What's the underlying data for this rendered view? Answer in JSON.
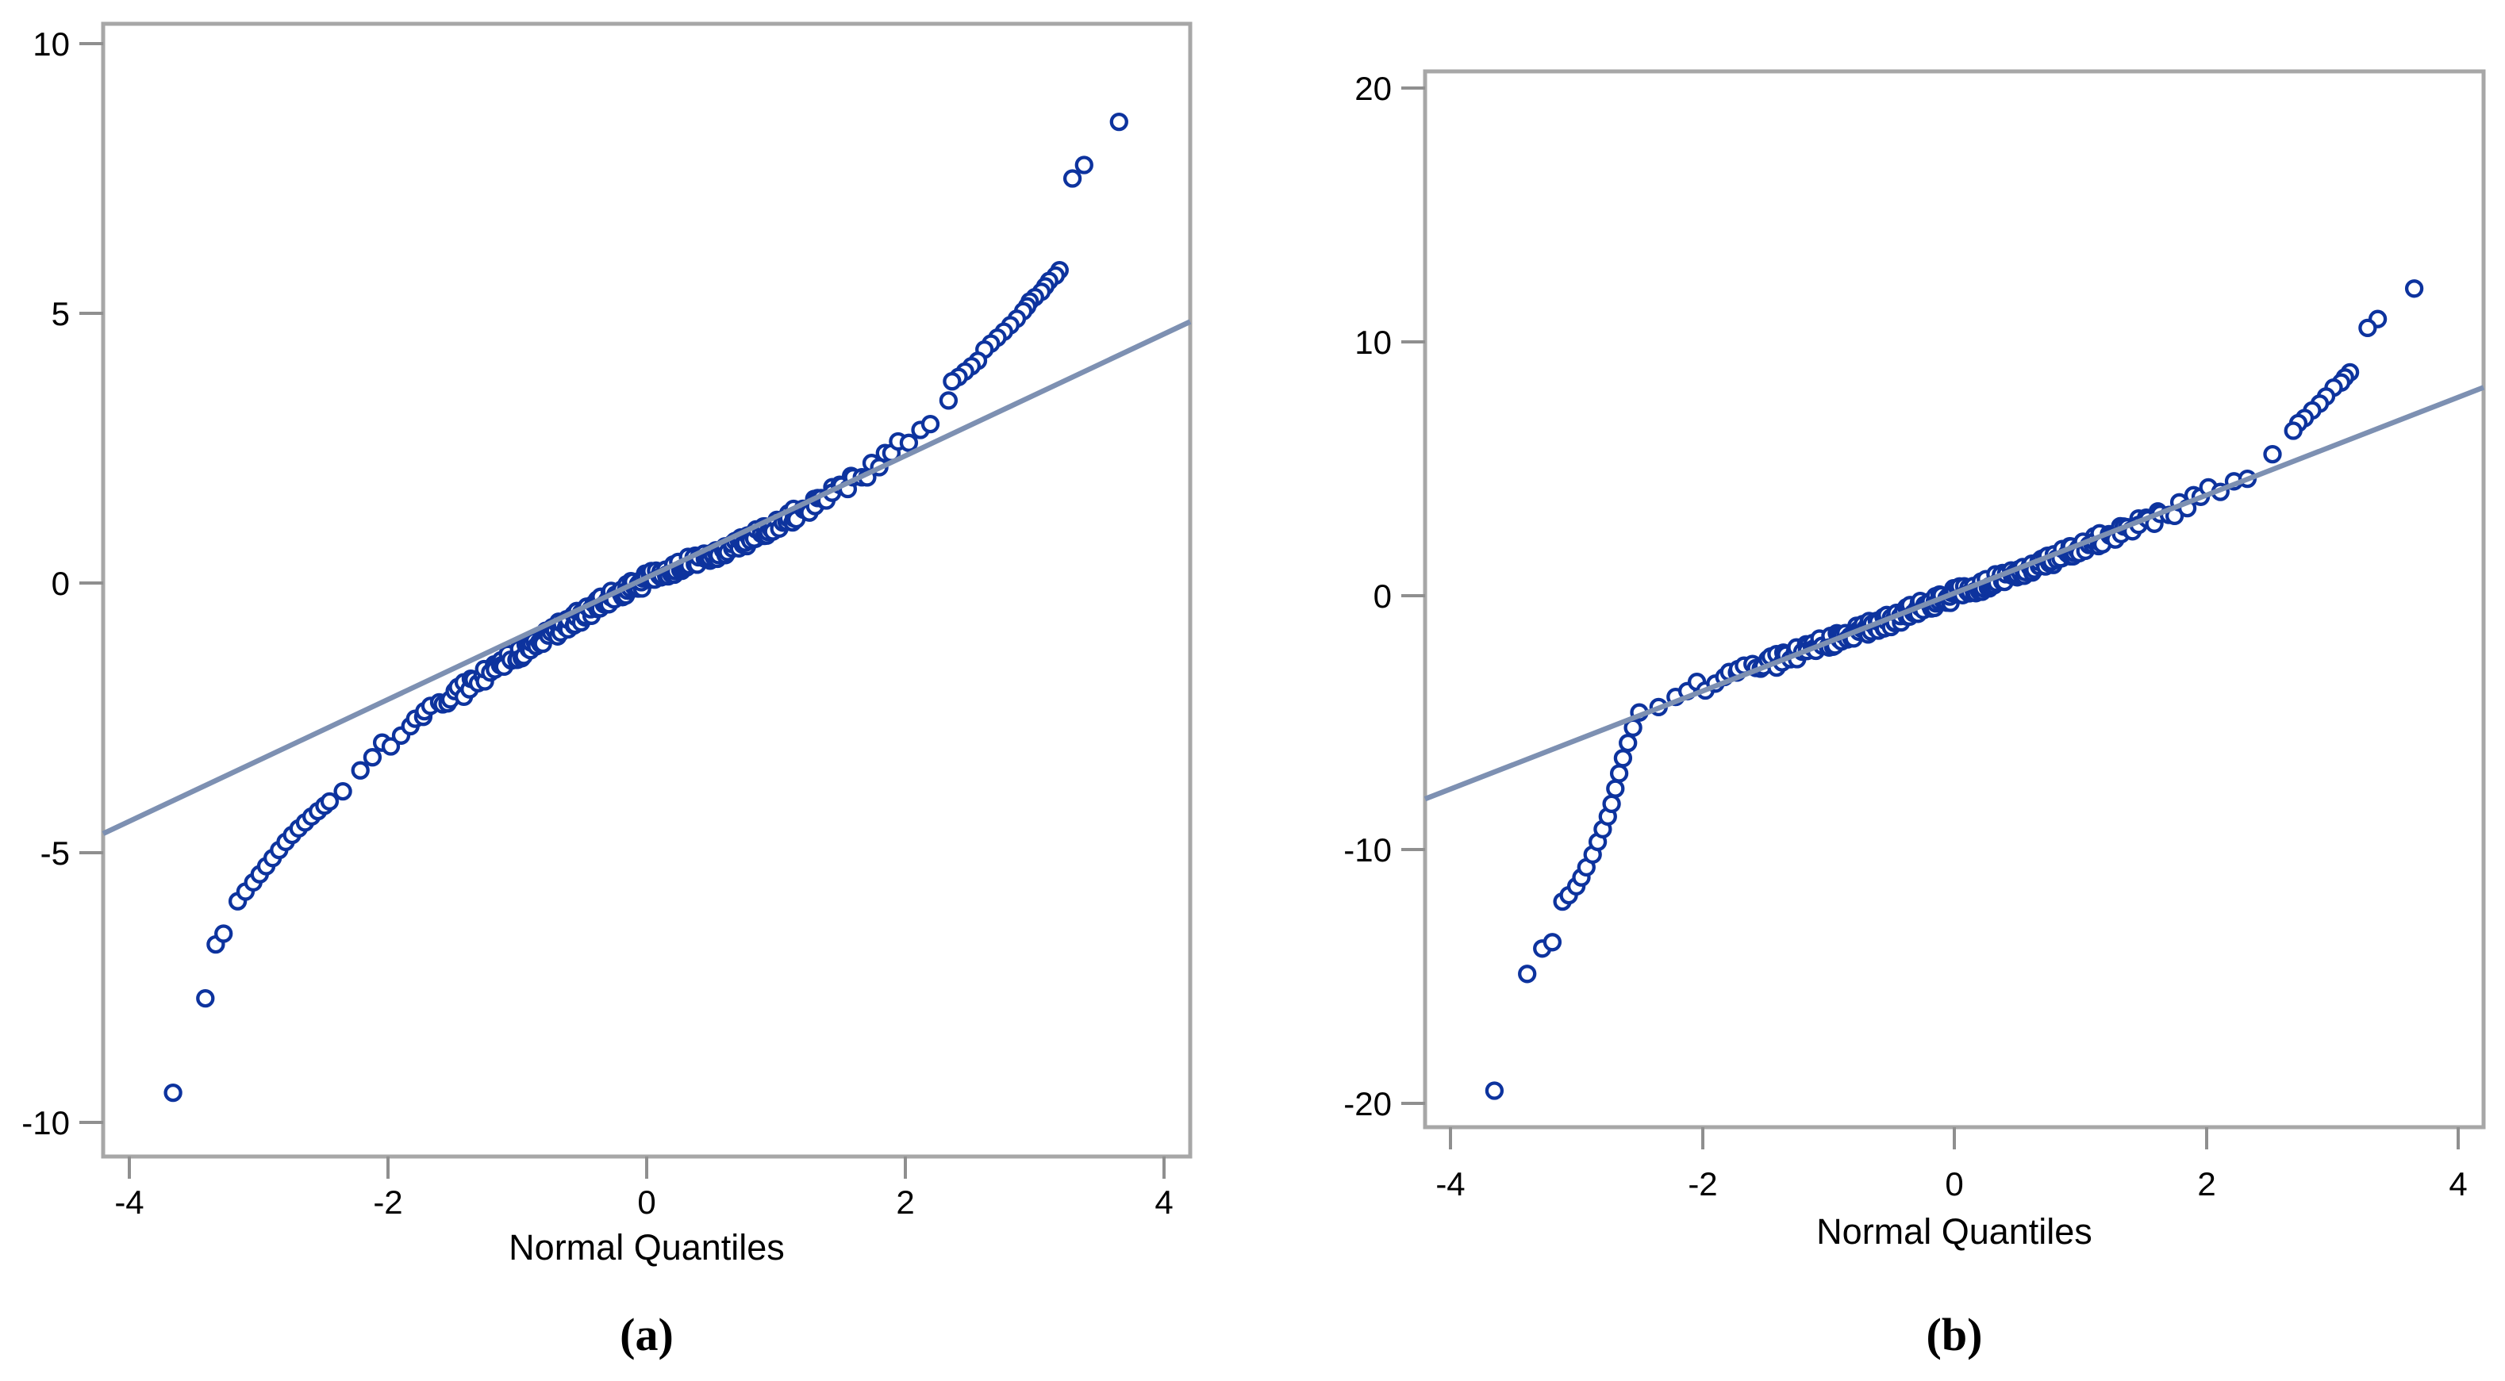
{
  "figure": {
    "description": "Two side-by-side normal quantile (Q-Q) plots of residuals with heavy tails, SAS-style, each with a blue-gray normal reference line and open navy circle markers forming an S-shaped curve."
  },
  "style": {
    "marker_color": "#0d339e",
    "marker_fill": "#ffffff",
    "ref_line_color": "#7d90b2",
    "frame_color": "#a7a7a7",
    "tick_color": "#8f8f8f",
    "text_color": "#000000",
    "background": "#ffffff"
  },
  "chart_data": [
    {
      "type": "scatter",
      "panel": "a",
      "caption": "(a)",
      "title": "",
      "xlabel": "Normal Quantiles",
      "ylabel": "",
      "grid": false,
      "legend": null,
      "marker": "open-circle",
      "xlim": [
        -4.2,
        4.2
      ],
      "ylim": [
        -10.6,
        10.4
      ],
      "x_ticks": [
        -4,
        -2,
        0,
        2,
        4
      ],
      "y_ticks": [
        10,
        5,
        0,
        -5,
        -10
      ],
      "x_tick_labels": [
        "-4",
        "-2",
        "0",
        "2",
        "4"
      ],
      "y_tick_labels": [
        "10",
        "5",
        "0",
        "-5",
        "-10"
      ],
      "ref_line": {
        "slope": 1.13,
        "intercept": 0.1,
        "x_span": [
          -4.2,
          4.2
        ]
      },
      "tail_points": [
        [
          3.65,
          8.55
        ],
        [
          3.38,
          7.75
        ],
        [
          3.29,
          7.5
        ],
        [
          3.19,
          5.8
        ],
        [
          3.16,
          5.7
        ],
        [
          3.11,
          5.6
        ],
        [
          3.08,
          5.5
        ],
        [
          3.05,
          5.4
        ],
        [
          3.0,
          5.3
        ],
        [
          2.96,
          5.22
        ],
        [
          2.94,
          5.13
        ],
        [
          2.91,
          5.04
        ],
        [
          2.86,
          4.9
        ],
        [
          2.81,
          4.78
        ],
        [
          2.76,
          4.66
        ],
        [
          2.71,
          4.55
        ],
        [
          2.66,
          4.44
        ],
        [
          2.61,
          4.33
        ],
        [
          2.56,
          4.12
        ],
        [
          2.51,
          4.02
        ],
        [
          2.46,
          3.92
        ],
        [
          2.41,
          3.82
        ],
        [
          2.36,
          3.74
        ],
        [
          -3.66,
          -9.45
        ],
        [
          -3.41,
          -7.7
        ],
        [
          -3.33,
          -6.7
        ],
        [
          -3.27,
          -6.5
        ],
        [
          -3.16,
          -5.9
        ],
        [
          -3.1,
          -5.72
        ],
        [
          -3.04,
          -5.55
        ],
        [
          -2.99,
          -5.4
        ],
        [
          -2.94,
          -5.25
        ],
        [
          -2.89,
          -5.1
        ],
        [
          -2.84,
          -4.95
        ],
        [
          -2.79,
          -4.8
        ],
        [
          -2.74,
          -4.67
        ],
        [
          -2.69,
          -4.55
        ],
        [
          -2.64,
          -4.44
        ],
        [
          -2.59,
          -4.33
        ],
        [
          -2.54,
          -4.23
        ],
        [
          -2.49,
          -4.13
        ],
        [
          -2.45,
          -4.05
        ]
      ],
      "band": {
        "description": "dense run of overlapping open-circle markers forming the central S-curve",
        "n": 250,
        "u_range": [
          0.0072,
          0.9918
        ],
        "jitter_y": 0.12,
        "jitter_x": 0.02,
        "anchors": [
          [
            -2.45,
            -4.0
          ],
          [
            -2.3,
            -3.65
          ],
          [
            -2.1,
            -3.2
          ],
          [
            -1.9,
            -2.8
          ],
          [
            -1.7,
            -2.45
          ],
          [
            -1.5,
            -2.1
          ],
          [
            -1.3,
            -1.78
          ],
          [
            -1.1,
            -1.48
          ],
          [
            -0.9,
            -1.18
          ],
          [
            -0.7,
            -0.88
          ],
          [
            -0.5,
            -0.58
          ],
          [
            -0.3,
            -0.32
          ],
          [
            -0.1,
            -0.05
          ],
          [
            0.1,
            0.16
          ],
          [
            0.3,
            0.36
          ],
          [
            0.5,
            0.5
          ],
          [
            0.7,
            0.72
          ],
          [
            0.9,
            0.95
          ],
          [
            1.1,
            1.2
          ],
          [
            1.3,
            1.48
          ],
          [
            1.5,
            1.78
          ],
          [
            1.7,
            2.08
          ],
          [
            1.9,
            2.42
          ],
          [
            2.1,
            2.82
          ],
          [
            2.3,
            3.28
          ],
          [
            2.4,
            3.55
          ]
        ]
      }
    },
    {
      "type": "scatter",
      "panel": "b",
      "caption": "(b)",
      "title": "",
      "xlabel": "Normal Quantiles",
      "ylabel": "",
      "grid": false,
      "legend": null,
      "marker": "open-circle",
      "xlim": [
        -4.2,
        4.2
      ],
      "ylim": [
        -20.9,
        20.7
      ],
      "x_ticks": [
        -4,
        -2,
        0,
        2,
        4
      ],
      "y_ticks": [
        20,
        10,
        0,
        -10,
        -20
      ],
      "x_tick_labels": [
        "-4",
        "-2",
        "0",
        "2",
        "4"
      ],
      "y_tick_labels": [
        "20",
        "10",
        "0",
        "-10",
        "-20"
      ],
      "ref_line": {
        "slope": 1.93,
        "intercept": 0.1,
        "x_span": [
          -4.2,
          4.2
        ]
      },
      "tail_points": [
        [
          3.65,
          12.1
        ],
        [
          3.36,
          10.9
        ],
        [
          3.28,
          10.55
        ],
        [
          3.14,
          8.8
        ],
        [
          3.1,
          8.6
        ],
        [
          3.07,
          8.4
        ],
        [
          3.01,
          8.2
        ],
        [
          2.95,
          7.85
        ],
        [
          2.9,
          7.57
        ],
        [
          2.84,
          7.3
        ],
        [
          2.78,
          7.0
        ],
        [
          2.73,
          6.8
        ],
        [
          2.69,
          6.5
        ],
        [
          -3.65,
          -19.5
        ],
        [
          -3.39,
          -14.9
        ],
        [
          -3.27,
          -13.9
        ],
        [
          -3.19,
          -13.65
        ],
        [
          -3.11,
          -12.05
        ],
        [
          -3.06,
          -11.8
        ],
        [
          -3.0,
          -11.45
        ],
        [
          -2.96,
          -11.1
        ],
        [
          -2.92,
          -10.7
        ],
        [
          -2.87,
          -10.2
        ],
        [
          -2.83,
          -9.7
        ],
        [
          -2.79,
          -9.2
        ],
        [
          -2.75,
          -8.7
        ],
        [
          -2.72,
          -8.2
        ],
        [
          -2.69,
          -7.6
        ],
        [
          -2.66,
          -7.0
        ],
        [
          -2.63,
          -6.4
        ],
        [
          -2.59,
          -5.8
        ],
        [
          -2.55,
          -5.2
        ],
        [
          -2.5,
          -4.6
        ]
      ],
      "band": {
        "description": "dense run of overlapping open-circle markers forming the central S-curve",
        "n": 250,
        "u_range": [
          0.0072,
          0.996
        ],
        "jitter_y": 0.26,
        "jitter_x": 0.02,
        "anchors": [
          [
            -2.45,
            -4.35
          ],
          [
            -2.3,
            -4.15
          ],
          [
            -2.1,
            -3.75
          ],
          [
            -1.9,
            -3.4
          ],
          [
            -1.7,
            -3.05
          ],
          [
            -1.5,
            -2.7
          ],
          [
            -1.3,
            -2.35
          ],
          [
            -1.1,
            -2.0
          ],
          [
            -0.9,
            -1.65
          ],
          [
            -0.7,
            -1.3
          ],
          [
            -0.5,
            -0.95
          ],
          [
            -0.3,
            -0.55
          ],
          [
            -0.1,
            -0.15
          ],
          [
            0.1,
            0.2
          ],
          [
            0.3,
            0.55
          ],
          [
            0.5,
            0.9
          ],
          [
            0.7,
            1.3
          ],
          [
            0.9,
            1.7
          ],
          [
            1.1,
            2.1
          ],
          [
            1.3,
            2.5
          ],
          [
            1.5,
            2.9
          ],
          [
            1.7,
            3.3
          ],
          [
            1.9,
            3.75
          ],
          [
            2.1,
            4.2
          ],
          [
            2.3,
            4.7
          ],
          [
            2.5,
            5.4
          ],
          [
            2.6,
            5.9
          ],
          [
            2.65,
            6.2
          ]
        ]
      }
    }
  ]
}
